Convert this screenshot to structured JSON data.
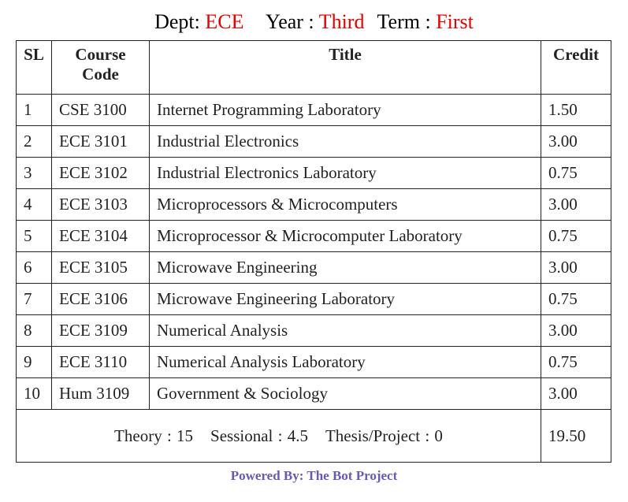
{
  "header": {
    "dept_label": "Dept:",
    "dept_value": "ECE",
    "year_label": "Year :",
    "year_value": "Third",
    "term_label": "Term :",
    "term_value": "First",
    "label_color": "#000000",
    "value_color": "#e00000"
  },
  "table": {
    "columns": [
      "SL",
      "Course Code",
      "Title",
      "Credit"
    ],
    "rows": [
      {
        "sl": "1",
        "code": "CSE 3100",
        "title": "Internet Programming Laboratory",
        "credit": "1.50"
      },
      {
        "sl": "2",
        "code": "ECE 3101",
        "title": "Industrial Electronics",
        "credit": "3.00"
      },
      {
        "sl": "3",
        "code": "ECE 3102",
        "title": "Industrial Electronics Laboratory",
        "credit": "0.75"
      },
      {
        "sl": "4",
        "code": "ECE 3103",
        "title": "Microprocessors & Microcomputers",
        "credit": "3.00"
      },
      {
        "sl": "5",
        "code": "ECE 3104",
        "title": "Microprocessor & Microcomputer Laboratory",
        "credit": "0.75"
      },
      {
        "sl": "6",
        "code": "ECE 3105",
        "title": "Microwave Engineering",
        "credit": "3.00"
      },
      {
        "sl": "7",
        "code": "ECE 3106",
        "title": "Microwave Engineering Laboratory",
        "credit": "0.75"
      },
      {
        "sl": "8",
        "code": "ECE 3109",
        "title": "Numerical Analysis",
        "credit": "3.00"
      },
      {
        "sl": "9",
        "code": "ECE 3110",
        "title": "Numerical Analysis Laboratory",
        "credit": "0.75"
      },
      {
        "sl": "10",
        "code": "Hum 3109",
        "title": "Government & Sociology",
        "credit": "3.00"
      }
    ],
    "summary": {
      "theory": "Theory : 15",
      "sessional": "Sessional : 4.5",
      "thesis": "Thesis/Project : 0",
      "total_credit": "19.50"
    }
  },
  "footer": {
    "text": "Powered By: The Bot Project",
    "color": "#6a5aae"
  }
}
